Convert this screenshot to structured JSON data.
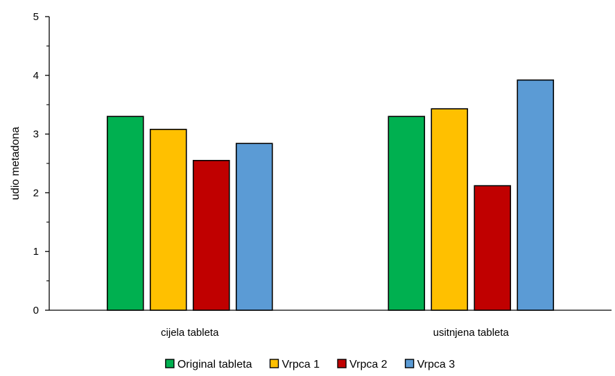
{
  "chart_data": {
    "type": "bar",
    "ylabel": "udio metadona",
    "xlabel": "",
    "title": "",
    "ylim": [
      0,
      5
    ],
    "yticks": [
      0,
      1,
      2,
      3,
      4,
      5
    ],
    "categories": [
      "cijela tableta",
      "usitnjena tableta"
    ],
    "series": [
      {
        "name": "Original tableta",
        "color": "#00b050",
        "values": [
          3.3,
          3.3
        ]
      },
      {
        "name": "Vrpca 1",
        "color": "#ffc000",
        "values": [
          3.08,
          3.43
        ]
      },
      {
        "name": "Vrpca 2",
        "color": "#c00000",
        "values": [
          2.55,
          2.12
        ]
      },
      {
        "name": "Vrpca 3",
        "color": "#5b9bd5",
        "values": [
          2.84,
          3.92
        ]
      }
    ],
    "grid": false,
    "legend_position": "bottom"
  }
}
